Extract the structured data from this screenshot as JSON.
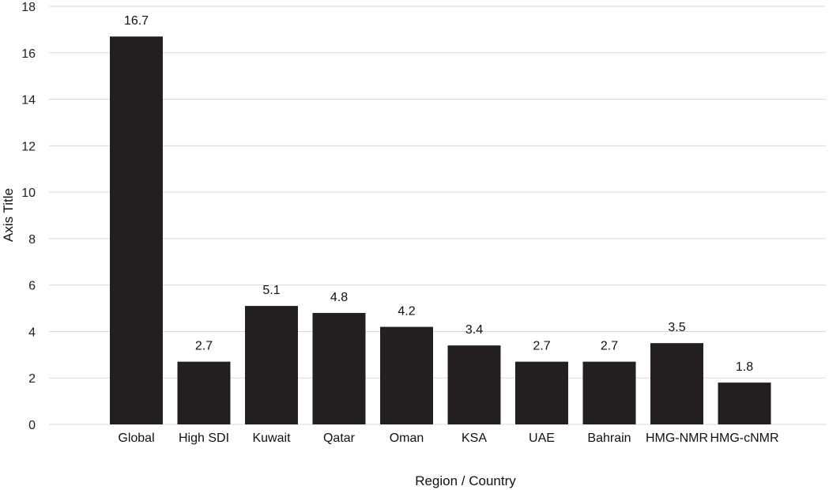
{
  "chart_data": {
    "type": "bar",
    "title": "",
    "xlabel": "Region / Country",
    "ylabel": "Axis Title",
    "ylim": [
      0,
      18
    ],
    "yticks": [
      0,
      2,
      4,
      6,
      8,
      10,
      12,
      14,
      16,
      18
    ],
    "grid": true,
    "bar_color": "#231f20",
    "categories": [
      "Global",
      "High SDI",
      "Kuwait",
      "Qatar",
      "Oman",
      "KSA",
      "UAE",
      "Bahrain",
      "HMG-NMR",
      "HMG-cNMR"
    ],
    "values": [
      16.7,
      2.7,
      5.1,
      4.8,
      4.2,
      3.4,
      2.7,
      2.7,
      3.5,
      1.8
    ],
    "data_labels": [
      "16.7",
      "2.7",
      "5.1",
      "4.8",
      "4.2",
      "3.4",
      "2.7",
      "2.7",
      "3.5",
      "1.8"
    ]
  }
}
